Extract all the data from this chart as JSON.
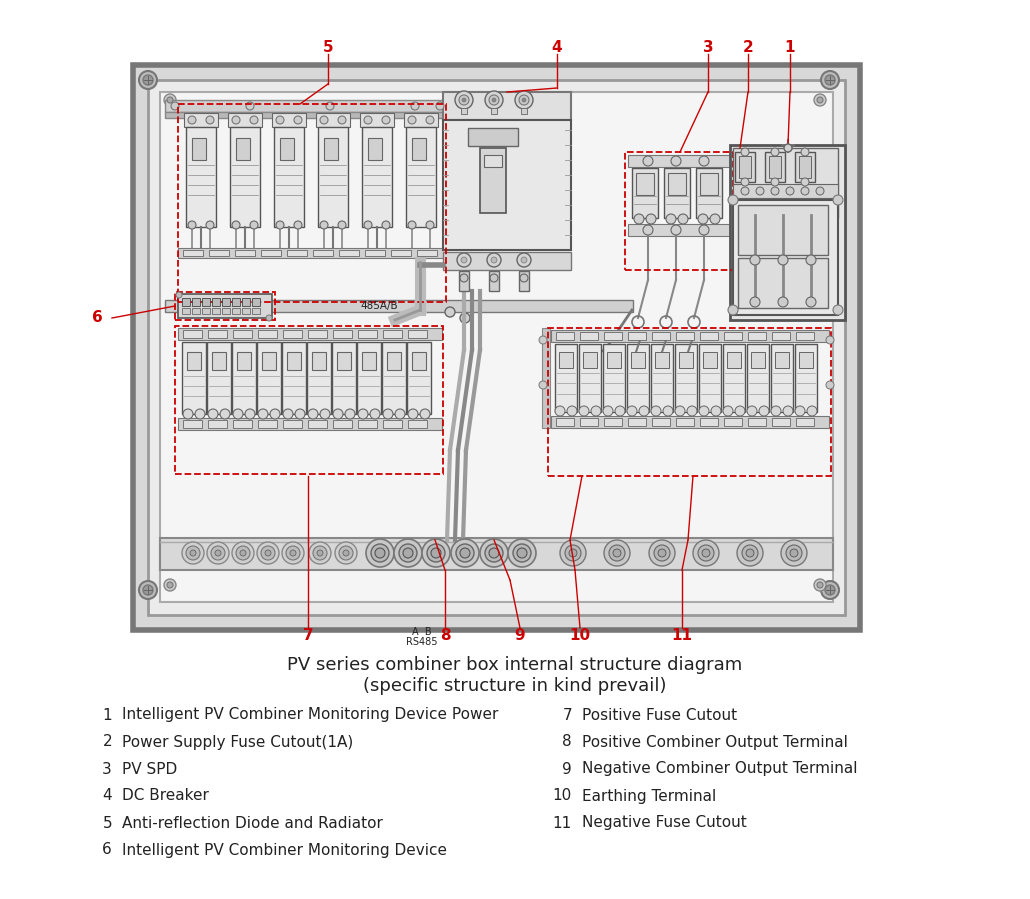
{
  "title_line1": "PV series combiner box internal structure diagram",
  "title_line2": "(specific structure in kind prevail)",
  "legend_left": [
    [
      "1",
      "Intelligent PV Combiner Monitoring Device Power"
    ],
    [
      "2",
      "Power Supply Fuse Cutout(1A)"
    ],
    [
      "3",
      "PV SPD"
    ],
    [
      "4",
      "DC Breaker"
    ],
    [
      "5",
      "Anti-reflection Diode and Radiator"
    ],
    [
      "6",
      "Intelligent PV Combiner Monitoring Device"
    ]
  ],
  "legend_right": [
    [
      "7",
      "Positive Fuse Cutout"
    ],
    [
      "8",
      "Positive Combiner Output Terminal"
    ],
    [
      "9",
      "Negative Combiner Output Terminal"
    ],
    [
      "10",
      "Earthing Terminal"
    ],
    [
      "11",
      "Negative Fuse Cutout"
    ]
  ],
  "red": "#cc0000",
  "dark": "#222222",
  "white": "#ffffff",
  "panel_bg": "#f2f2f2",
  "box_outer": "#c8c8c8",
  "box_inner": "#e8e8e8",
  "line_color": "#555555",
  "comp_fill": "#e0e0e0",
  "comp_dark": "#b0b0b0"
}
